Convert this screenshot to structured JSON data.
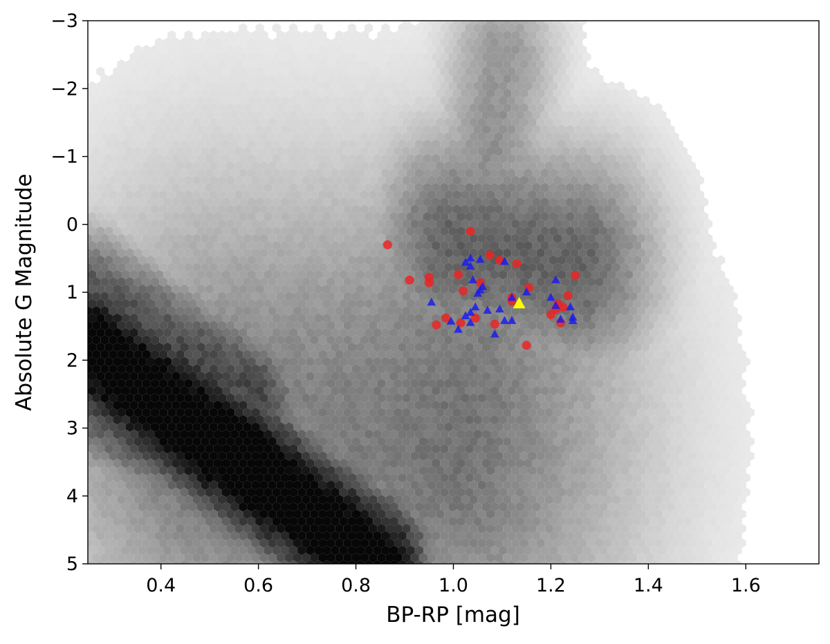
{
  "chart_data": {
    "type": "scatter",
    "title": "",
    "xlabel": "BP-RP [mag]",
    "ylabel": "Absolute G Magnitude",
    "xlim": [
      0.25,
      1.75
    ],
    "ylim": [
      5,
      -3
    ],
    "y_inverted": true,
    "grid": false,
    "legend": "none",
    "xticks": [
      0.4,
      0.6,
      0.8,
      1.0,
      1.2,
      1.4,
      1.6
    ],
    "xtick_labels": [
      "0.4",
      "0.6",
      "0.8",
      "1.0",
      "1.2",
      "1.4",
      "1.6"
    ],
    "yticks": [
      -3,
      -2,
      -1,
      0,
      1,
      2,
      3,
      4,
      5
    ],
    "ytick_labels": [
      "−3",
      "−2",
      "−1",
      "0",
      "1",
      "2",
      "3",
      "4",
      "5"
    ],
    "background": {
      "type": "hexbin-density",
      "colormap": "Greys",
      "regions": [
        {
          "kind": "main-sequence",
          "color_start": 0.25,
          "mag_start": 1.8,
          "color_end": 0.85,
          "mag_end": 5.0,
          "width": 0.11,
          "density": 0.95
        },
        {
          "kind": "main-sequence-upper",
          "color_start": 0.25,
          "mag_start": 1.0,
          "color_end": 0.6,
          "mag_end": 2.5,
          "width": 0.1,
          "density": 0.6
        },
        {
          "kind": "subgiant-branch",
          "color_start": 0.55,
          "mag_start": 3.2,
          "color_end": 1.0,
          "mag_end": 3.3,
          "width": 0.4,
          "density": 0.45
        },
        {
          "kind": "binary-sequence",
          "color_start": 0.25,
          "mag_start": 2.9,
          "color_end": 0.75,
          "mag_end": 5.0,
          "width": 0.07,
          "density": 0.55
        },
        {
          "kind": "red-giant-branch",
          "color_start": 1.0,
          "mag_start": 3.8,
          "color_end": 1.1,
          "mag_end": -2.5,
          "width": 0.12,
          "density": 0.35
        },
        {
          "kind": "red-clump",
          "color_start": 1.0,
          "mag_start": 0.3,
          "color_end": 1.25,
          "mag_end": 0.6,
          "width": 0.18,
          "density": 0.55
        }
      ]
    },
    "series": [
      {
        "marker": "circle",
        "color": "#ee2222",
        "points": [
          {
            "x": 1.035,
            "y": 0.1
          },
          {
            "x": 0.865,
            "y": 0.3
          },
          {
            "x": 1.075,
            "y": 0.45
          },
          {
            "x": 1.095,
            "y": 0.53
          },
          {
            "x": 1.13,
            "y": 0.58
          },
          {
            "x": 1.25,
            "y": 0.75
          },
          {
            "x": 1.01,
            "y": 0.74
          },
          {
            "x": 0.95,
            "y": 0.78
          },
          {
            "x": 0.91,
            "y": 0.82
          },
          {
            "x": 0.95,
            "y": 0.86
          },
          {
            "x": 1.055,
            "y": 0.86
          },
          {
            "x": 1.155,
            "y": 0.93
          },
          {
            "x": 1.02,
            "y": 0.98
          },
          {
            "x": 1.235,
            "y": 1.05
          },
          {
            "x": 1.12,
            "y": 1.08
          },
          {
            "x": 1.12,
            "y": 1.13
          },
          {
            "x": 1.215,
            "y": 1.17
          },
          {
            "x": 1.225,
            "y": 1.22
          },
          {
            "x": 1.21,
            "y": 1.25
          },
          {
            "x": 1.2,
            "y": 1.33
          },
          {
            "x": 0.985,
            "y": 1.38
          },
          {
            "x": 1.045,
            "y": 1.38
          },
          {
            "x": 1.015,
            "y": 1.45
          },
          {
            "x": 0.965,
            "y": 1.48
          },
          {
            "x": 1.22,
            "y": 1.45
          },
          {
            "x": 1.085,
            "y": 1.47
          },
          {
            "x": 1.15,
            "y": 1.78
          }
        ]
      },
      {
        "marker": "triangle",
        "color": "#1a1aee",
        "points": [
          {
            "x": 1.035,
            "y": 0.5
          },
          {
            "x": 1.025,
            "y": 0.56
          },
          {
            "x": 1.055,
            "y": 0.52
          },
          {
            "x": 1.105,
            "y": 0.55
          },
          {
            "x": 1.035,
            "y": 0.62
          },
          {
            "x": 1.04,
            "y": 0.82
          },
          {
            "x": 1.06,
            "y": 0.92
          },
          {
            "x": 1.055,
            "y": 0.97
          },
          {
            "x": 1.05,
            "y": 1.02
          },
          {
            "x": 1.21,
            "y": 0.82
          },
          {
            "x": 1.15,
            "y": 1.0
          },
          {
            "x": 1.12,
            "y": 1.08
          },
          {
            "x": 1.2,
            "y": 1.08
          },
          {
            "x": 0.955,
            "y": 1.15
          },
          {
            "x": 1.045,
            "y": 1.22
          },
          {
            "x": 1.07,
            "y": 1.27
          },
          {
            "x": 1.095,
            "y": 1.25
          },
          {
            "x": 1.035,
            "y": 1.3
          },
          {
            "x": 1.24,
            "y": 1.22
          },
          {
            "x": 1.21,
            "y": 1.2
          },
          {
            "x": 1.025,
            "y": 1.35
          },
          {
            "x": 1.245,
            "y": 1.37
          },
          {
            "x": 0.995,
            "y": 1.43
          },
          {
            "x": 1.035,
            "y": 1.45
          },
          {
            "x": 1.105,
            "y": 1.42
          },
          {
            "x": 1.12,
            "y": 1.42
          },
          {
            "x": 1.22,
            "y": 1.4
          },
          {
            "x": 1.245,
            "y": 1.42
          },
          {
            "x": 1.01,
            "y": 1.55
          },
          {
            "x": 1.085,
            "y": 1.62
          }
        ]
      },
      {
        "marker": "triangle",
        "color": "#ffff00",
        "points": [
          {
            "x": 1.135,
            "y": 1.17
          }
        ]
      }
    ]
  }
}
